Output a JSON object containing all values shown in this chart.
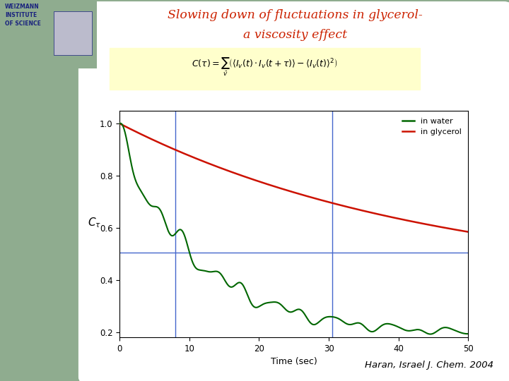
{
  "title_line1": "Slowing down of fluctuations in glycerol-",
  "title_line2": "a viscosity effect",
  "title_color": "#cc2200",
  "bg_slide": "#8fac8f",
  "bg_white": "#ffffff",
  "bg_formula": "#ffffdd",
  "xlabel": "Time (sec)",
  "xlim": [
    0,
    50
  ],
  "ylim": [
    0.18,
    1.05
  ],
  "yticks": [
    0.2,
    0.4,
    0.6,
    0.8,
    1.0
  ],
  "xticks": [
    0,
    10,
    20,
    30,
    40,
    50
  ],
  "water_color": "#006600",
  "glycerol_color": "#cc1100",
  "vline_color": "#4466cc",
  "hline_color": "#4466cc",
  "vline_x1": 8.0,
  "vline_x2": 30.5,
  "hline_y": 0.505,
  "legend_water": "in water",
  "legend_glycerol": "in glycerol",
  "citation": "Haran, Israel J. Chem. 2004"
}
